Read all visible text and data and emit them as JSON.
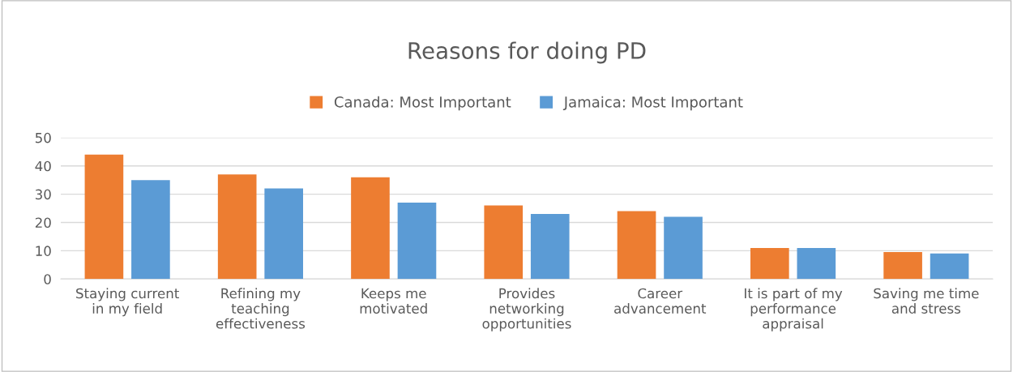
{
  "chart_data": {
    "type": "bar",
    "title": "Reasons for doing PD",
    "categories": [
      "Staying current\nin my field",
      "Refining my\nteaching\neffectiveness",
      "Keeps me\nmotivated",
      "Provides\nnetworking\nopportunities",
      "Career\nadvancement",
      "It is part of my\nperformance\nappraisal",
      "Saving me time\nand stress"
    ],
    "series": [
      {
        "name": "Canada: Most Important",
        "color": "#ed7d31",
        "values": [
          44,
          37,
          36,
          26,
          24,
          11,
          9.5
        ]
      },
      {
        "name": "Jamaica: Most Important",
        "color": "#5b9bd5",
        "values": [
          35,
          32,
          27,
          23,
          22,
          11,
          9
        ]
      }
    ],
    "ylim": [
      0,
      50
    ],
    "yticks": [
      0,
      10,
      20,
      30,
      40,
      50
    ],
    "grid": "y",
    "legend": "top"
  }
}
